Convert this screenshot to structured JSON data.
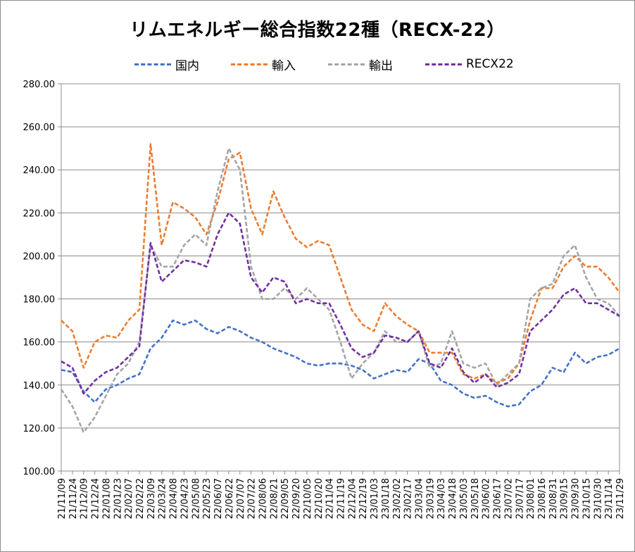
{
  "chart_data": {
    "type": "line",
    "title": "リムエネルギー総合指数22種（RECX-22）",
    "xlabel": "",
    "ylabel": "",
    "ylim": [
      100,
      280
    ],
    "yticks": [
      "100.00",
      "120.00",
      "140.00",
      "160.00",
      "180.00",
      "200.00",
      "220.00",
      "240.00",
      "260.00",
      "280.00"
    ],
    "x": [
      "21/11/09",
      "21/11/24",
      "21/12/09",
      "21/12/24",
      "22/01/08",
      "22/01/23",
      "22/02/07",
      "22/02/22",
      "22/03/09",
      "22/03/24",
      "22/04/08",
      "22/04/23",
      "22/05/08",
      "22/05/23",
      "22/06/07",
      "22/06/22",
      "22/07/07",
      "22/07/22",
      "22/08/06",
      "22/08/21",
      "22/09/05",
      "22/09/20",
      "22/10/05",
      "22/10/20",
      "22/11/04",
      "22/11/19",
      "22/12/04",
      "22/12/19",
      "23/01/03",
      "23/01/18",
      "23/02/02",
      "23/02/17",
      "23/03/04",
      "23/03/19",
      "23/04/03",
      "23/04/18",
      "23/05/03",
      "23/05/18",
      "23/06/02",
      "23/06/17",
      "23/07/02",
      "23/07/17",
      "23/08/01",
      "23/08/16",
      "23/08/31",
      "23/09/15",
      "23/09/30",
      "23/10/15",
      "23/10/30",
      "23/11/14",
      "23/11/29"
    ],
    "grid": true,
    "legend_position": "top",
    "series": [
      {
        "name": "国内",
        "color": "#4472c4",
        "values": [
          147,
          146,
          137,
          132,
          138,
          140,
          143,
          145,
          157,
          162,
          170,
          168,
          170,
          166,
          164,
          167,
          165,
          162,
          160,
          157,
          155,
          153,
          150,
          149,
          150,
          150,
          149,
          147,
          143,
          145,
          147,
          146,
          152,
          150,
          142,
          140,
          136,
          134,
          135,
          132,
          130,
          131,
          137,
          140,
          148,
          146,
          155,
          150,
          153,
          154,
          157
        ]
      },
      {
        "name": "輸入",
        "color": "#ed7d31",
        "values": [
          170,
          165,
          148,
          160,
          163,
          162,
          170,
          175,
          252,
          205,
          225,
          222,
          218,
          210,
          225,
          245,
          248,
          222,
          210,
          230,
          218,
          208,
          204,
          207,
          205,
          190,
          175,
          168,
          165,
          178,
          172,
          168,
          165,
          155,
          155,
          155,
          145,
          143,
          145,
          141,
          143,
          150,
          170,
          185,
          185,
          195,
          200,
          195,
          195,
          190,
          183
        ]
      },
      {
        "name": "輸出",
        "color": "#a5a5a5",
        "values": [
          138,
          130,
          118,
          125,
          135,
          145,
          150,
          160,
          205,
          195,
          195,
          205,
          210,
          205,
          230,
          250,
          240,
          195,
          180,
          180,
          185,
          180,
          185,
          180,
          175,
          160,
          143,
          150,
          155,
          165,
          160,
          160,
          165,
          148,
          150,
          165,
          150,
          148,
          150,
          140,
          145,
          150,
          180,
          185,
          187,
          200,
          205,
          190,
          180,
          178,
          172
        ]
      },
      {
        "name": "RECX22",
        "color": "#7030a0",
        "values": [
          151,
          148,
          136,
          142,
          146,
          148,
          153,
          158,
          206,
          188,
          193,
          198,
          197,
          195,
          210,
          220,
          215,
          190,
          183,
          190,
          188,
          178,
          180,
          178,
          178,
          168,
          157,
          153,
          155,
          163,
          162,
          160,
          165,
          150,
          148,
          157,
          146,
          141,
          145,
          139,
          141,
          145,
          165,
          170,
          175,
          182,
          185,
          178,
          178,
          175,
          172
        ]
      }
    ]
  }
}
